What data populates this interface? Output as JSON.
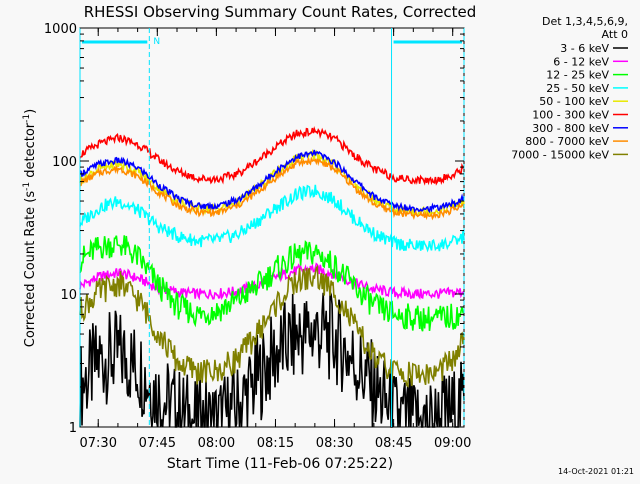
{
  "chart_data": {
    "type": "line",
    "title": "RHESSI Observing Summary Count Rates, Corrected",
    "xlabel": "Start Time (11-Feb-06 07:25:22)",
    "ylabel_main": "Corrected Count Rate (s",
    "ylabel_sup1": "-1",
    "ylabel_mid": " detector",
    "ylabel_sup2": "-1",
    "ylabel_end": ")",
    "y_scale": "log",
    "ylim": [
      1,
      1000
    ],
    "xlim_minutes": [
      0,
      97.5
    ],
    "x_ticks": [
      {
        "label": "07:30",
        "minutes": 4.63
      },
      {
        "label": "07:45",
        "minutes": 19.63
      },
      {
        "label": "08:00",
        "minutes": 34.63
      },
      {
        "label": "08:15",
        "minutes": 49.63
      },
      {
        "label": "08:30",
        "minutes": 64.63
      },
      {
        "label": "08:45",
        "minutes": 79.63
      },
      {
        "label": "09:00",
        "minutes": 94.63
      }
    ],
    "y_ticks": [
      {
        "label": "1",
        "value": 1
      },
      {
        "label": "10",
        "value": 10
      },
      {
        "label": "100",
        "value": 100
      },
      {
        "label": "1000",
        "value": 1000
      }
    ],
    "legend_header": [
      "Det 1,3,4,5,6,9,",
      "Att 0"
    ],
    "legend_position": "right",
    "night_marker_label": "N",
    "timestamp": "14-Oct-2021 01:21",
    "series": [
      {
        "name": "3 - 6 keV",
        "color": "#000000",
        "x": [
          0,
          5,
          10,
          15,
          20,
          25,
          30,
          35,
          40,
          45,
          50,
          55,
          60,
          65,
          70,
          75,
          80,
          85,
          90,
          95,
          97.5
        ],
        "values": [
          2.0,
          3.2,
          3.5,
          2.8,
          1.7,
          1.3,
          1.1,
          1.1,
          1.4,
          2.3,
          3.6,
          4.8,
          5.3,
          4.5,
          3.0,
          1.9,
          1.2,
          1.1,
          1.1,
          1.3,
          1.5
        ]
      },
      {
        "name": "6 - 12 keV",
        "color": "#ff00ff",
        "x": [
          0,
          5,
          10,
          15,
          20,
          25,
          30,
          35,
          40,
          45,
          50,
          55,
          60,
          65,
          70,
          75,
          80,
          85,
          90,
          95,
          97.5
        ],
        "values": [
          11.5,
          13.5,
          14.5,
          13.0,
          11.0,
          10.3,
          10.0,
          10.1,
          10.5,
          11.5,
          13.5,
          15.0,
          15.5,
          14.0,
          12.0,
          10.8,
          10.2,
          10.0,
          10.0,
          10.2,
          10.5
        ]
      },
      {
        "name": "12 - 25 keV",
        "color": "#00ff00",
        "x": [
          0,
          5,
          10,
          15,
          20,
          25,
          30,
          35,
          40,
          45,
          50,
          55,
          60,
          65,
          70,
          75,
          80,
          85,
          90,
          95,
          97.5
        ],
        "values": [
          18.0,
          22.5,
          24.0,
          18.5,
          11.5,
          8.0,
          7.0,
          7.5,
          9.0,
          11.5,
          15.5,
          19.5,
          20.5,
          16.0,
          11.0,
          8.0,
          7.0,
          6.6,
          6.5,
          6.8,
          7.0
        ]
      },
      {
        "name": "25 - 50 keV",
        "color": "#00ffff",
        "x": [
          0,
          5,
          10,
          15,
          20,
          25,
          30,
          35,
          40,
          45,
          50,
          55,
          60,
          65,
          70,
          75,
          80,
          85,
          90,
          95,
          97.5
        ],
        "values": [
          34,
          45,
          50,
          42,
          32,
          27,
          25,
          25.5,
          28,
          35,
          45,
          56,
          60,
          50,
          36,
          28,
          24,
          23,
          23,
          24.5,
          27
        ]
      },
      {
        "name": "50 - 100 keV",
        "color": "#e8e800",
        "x": [
          0,
          5,
          10,
          15,
          20,
          25,
          30,
          35,
          40,
          45,
          50,
          55,
          60,
          65,
          70,
          75,
          80,
          85,
          90,
          95,
          97.5
        ],
        "values": [
          72,
          88,
          95,
          82,
          62,
          50,
          44,
          44,
          49,
          62,
          82,
          105,
          112,
          92,
          66,
          50,
          43,
          42,
          42,
          46,
          50
        ]
      },
      {
        "name": "100 - 300 keV",
        "color": "#ff0000",
        "x": [
          0,
          5,
          10,
          15,
          20,
          25,
          30,
          35,
          40,
          45,
          50,
          55,
          60,
          65,
          70,
          75,
          80,
          85,
          90,
          95,
          97.5
        ],
        "values": [
          112,
          135,
          150,
          132,
          102,
          83,
          74,
          73,
          80,
          100,
          130,
          160,
          168,
          145,
          108,
          86,
          75,
          72,
          72,
          78,
          90
        ]
      },
      {
        "name": "300 - 800 keV",
        "color": "#0000ff",
        "x": [
          0,
          5,
          10,
          15,
          20,
          25,
          30,
          35,
          40,
          45,
          50,
          55,
          60,
          65,
          70,
          75,
          80,
          85,
          90,
          95,
          97.5
        ],
        "values": [
          80,
          95,
          101,
          88,
          66,
          52,
          46,
          46,
          51,
          64,
          85,
          108,
          115,
          96,
          70,
          53,
          46,
          44,
          44,
          48,
          52
        ]
      },
      {
        "name": "800 - 7000 keV",
        "color": "#ff8c00",
        "x": [
          0,
          5,
          10,
          15,
          20,
          25,
          30,
          35,
          40,
          45,
          50,
          55,
          60,
          65,
          70,
          75,
          80,
          85,
          90,
          95,
          97.5
        ],
        "values": [
          68,
          82,
          88,
          76,
          58,
          46,
          41,
          41,
          46,
          58,
          76,
          96,
          102,
          86,
          62,
          47,
          41,
          39,
          39,
          43,
          47
        ]
      },
      {
        "name": "7000 - 15000 keV",
        "color": "#808000",
        "x": [
          0,
          5,
          10,
          15,
          20,
          25,
          30,
          35,
          40,
          45,
          50,
          55,
          60,
          65,
          70,
          75,
          80,
          85,
          90,
          95,
          97.5
        ],
        "values": [
          7.5,
          10.5,
          12.0,
          9.0,
          5.0,
          3.0,
          2.6,
          2.6,
          3.3,
          5.0,
          8.5,
          12.5,
          13.5,
          10.0,
          5.5,
          3.2,
          2.6,
          2.5,
          2.5,
          3.2,
          4.5
        ]
      }
    ],
    "night_intervals": [
      [
        0,
        17.6
      ],
      [
        79.1,
        97.5
      ]
    ],
    "saa_boundaries": [
      0,
      17.6,
      79.1,
      97.5
    ]
  }
}
